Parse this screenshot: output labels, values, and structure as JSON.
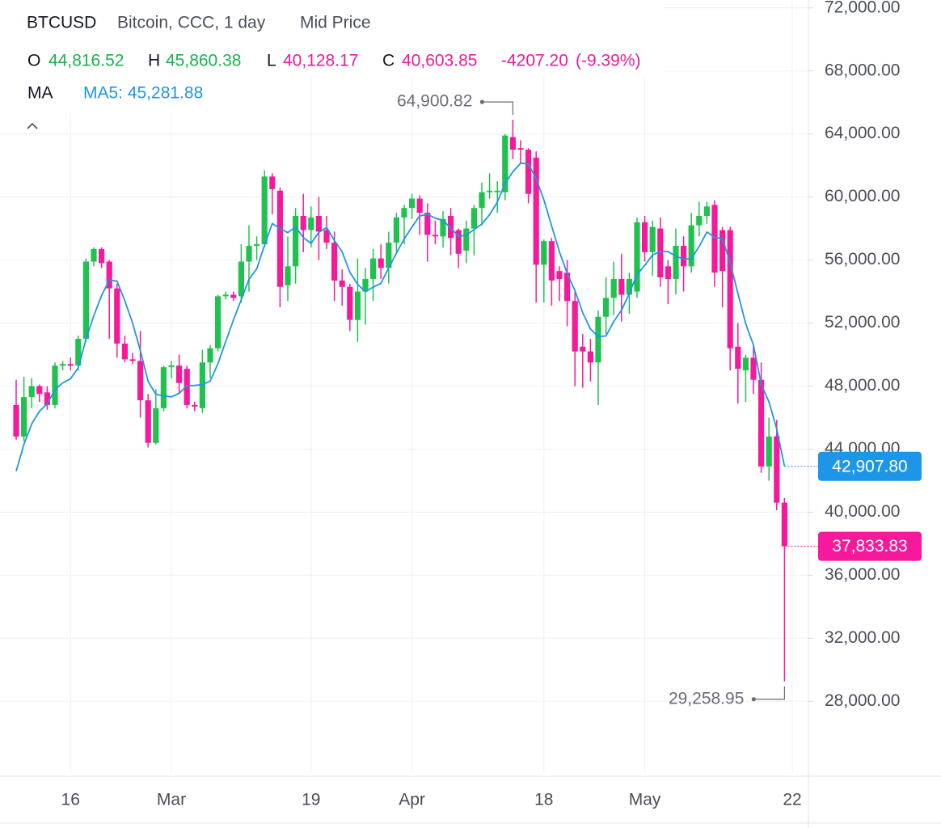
{
  "chart_data": {
    "type": "candlestick",
    "symbol": "BTCUSD",
    "description": "Bitcoin, CCC, 1 day",
    "price_source": "Mid Price",
    "header": {
      "open_label": "O",
      "open": {
        "value": 44816.52,
        "label": "44,816.52"
      },
      "high_label": "H",
      "high": {
        "value": 45860.38,
        "label": "45,860.38"
      },
      "low_label": "L",
      "low": {
        "value": 40128.17,
        "label": "40,128.17"
      },
      "close_label": "C",
      "close": {
        "value": 40603.85,
        "label": "40,603.85"
      },
      "change": {
        "value": -4207.2,
        "label": "-4207.20"
      },
      "change_pct": {
        "value": -9.39,
        "label": "(-9.39%)"
      }
    },
    "categories": [
      null,
      null,
      null,
      null,
      null,
      null,
      null,
      "16",
      null,
      null,
      null,
      null,
      null,
      null,
      null,
      null,
      null,
      null,
      null,
      null,
      "Mar",
      null,
      null,
      null,
      null,
      null,
      null,
      null,
      null,
      null,
      null,
      null,
      null,
      null,
      null,
      null,
      null,
      null,
      "19",
      null,
      null,
      null,
      null,
      null,
      null,
      null,
      null,
      null,
      null,
      null,
      null,
      "Apr",
      null,
      null,
      null,
      null,
      null,
      null,
      null,
      null,
      null,
      null,
      null,
      null,
      null,
      null,
      null,
      null,
      "18",
      null,
      null,
      null,
      null,
      null,
      null,
      null,
      null,
      null,
      null,
      null,
      null,
      "May",
      null,
      null,
      null,
      null,
      null,
      null,
      null,
      null,
      null,
      null,
      null,
      null,
      null,
      null,
      null,
      null,
      null,
      null,
      "22"
    ],
    "open": [
      46800,
      44800,
      47300,
      48000,
      47600,
      46800,
      49300,
      49400,
      49300,
      51000,
      55900,
      56700,
      55900,
      54200,
      50700,
      49700,
      49600,
      47100,
      44400,
      46600,
      49200,
      49300,
      49100,
      46800,
      46600,
      49500,
      50400,
      53700,
      53800,
      53700,
      55900,
      56900,
      57000,
      61300,
      60400,
      54400,
      55600,
      58800,
      57900,
      58800,
      57900,
      57100,
      54700,
      54300,
      52200,
      54000,
      54800,
      56100,
      55500,
      57100,
      58700,
      59300,
      59900,
      59000,
      57600,
      57500,
      58800,
      57900,
      56600,
      58000,
      59300,
      60300,
      60300,
      60300,
      63800,
      63100,
      63000,
      62500,
      55700,
      57200,
      55300,
      55200,
      53400,
      50500,
      50200,
      49500,
      52400,
      53600,
      54800,
      53800,
      54000,
      58400,
      56500,
      58000,
      55600,
      54800,
      56900,
      55600,
      58200,
      58800,
      59500,
      57900,
      57900,
      50500,
      49000,
      49800,
      48400,
      42900,
      44816.52,
      40603.85,
      null
    ],
    "high": [
      48400,
      48600,
      48500,
      48100,
      48000,
      49500,
      49600,
      49800,
      51200,
      56100,
      56800,
      56800,
      56000,
      54500,
      51200,
      50100,
      51500,
      47500,
      47800,
      49300,
      49600,
      50000,
      49300,
      47000,
      50300,
      50600,
      53800,
      54000,
      54000,
      57000,
      58200,
      57500,
      61700,
      61500,
      60600,
      57500,
      59300,
      60200,
      59400,
      60000,
      58800,
      57800,
      55400,
      54500,
      56100,
      55500,
      56700,
      57000,
      57800,
      59000,
      59500,
      60200,
      60100,
      59600,
      58500,
      59100,
      59300,
      58000,
      58500,
      59500,
      60900,
      61500,
      61000,
      64000,
      64900.82,
      63600,
      63100,
      62900,
      57300,
      57400,
      55600,
      56000,
      54100,
      51300,
      51000,
      52800,
      54900,
      55900,
      56400,
      55200,
      58700,
      58800,
      58500,
      58700,
      56000,
      58000,
      57500,
      59000,
      59700,
      59700,
      59800,
      58100,
      58100,
      52000,
      50000,
      50500,
      49500,
      46000,
      45860.38,
      40900,
      null
    ],
    "low": [
      44600,
      44500,
      46600,
      47000,
      46500,
      46600,
      49000,
      49000,
      49000,
      50800,
      55600,
      55500,
      51000,
      49800,
      49500,
      49400,
      46000,
      44100,
      44300,
      46400,
      48500,
      47500,
      46600,
      46400,
      46300,
      48500,
      50200,
      53500,
      53400,
      53300,
      54000,
      56000,
      56800,
      58900,
      53000,
      53400,
      54500,
      56500,
      56800,
      56000,
      56700,
      53400,
      53100,
      51500,
      50800,
      51900,
      53400,
      54800,
      54500,
      56500,
      57000,
      58600,
      57600,
      55900,
      57000,
      56800,
      56300,
      55500,
      55800,
      56300,
      58200,
      59900,
      59000,
      59800,
      62400,
      62100,
      59600,
      53300,
      53300,
      53100,
      53400,
      51800,
      48000,
      47900,
      48300,
      46800,
      51300,
      52500,
      52100,
      52600,
      53600,
      55900,
      55000,
      54300,
      53200,
      53800,
      54000,
      55200,
      57500,
      58300,
      54300,
      53000,
      49000,
      46900,
      47000,
      47500,
      42500,
      42000,
      40128.17,
      29258.95,
      null
    ],
    "close": [
      44800,
      47300,
      48000,
      47500,
      46800,
      49300,
      49400,
      49300,
      51000,
      55900,
      56700,
      55800,
      54200,
      50700,
      49700,
      49600,
      47100,
      44400,
      46600,
      49200,
      49300,
      48200,
      46800,
      46700,
      49500,
      50400,
      53700,
      53800,
      53600,
      55900,
      56900,
      57000,
      61300,
      60500,
      54300,
      55600,
      58800,
      57900,
      58700,
      57800,
      57100,
      54700,
      54300,
      52200,
      54000,
      54800,
      56100,
      55500,
      57100,
      58700,
      59300,
      59900,
      59000,
      57600,
      57500,
      58600,
      57400,
      56400,
      58000,
      59300,
      60300,
      60400,
      60400,
      63900,
      63000,
      63000,
      60200,
      55700,
      57200,
      54700,
      54800,
      53400,
      50200,
      50200,
      49500,
      52400,
      53600,
      54800,
      53800,
      54800,
      58400,
      56500,
      58100,
      54900,
      54800,
      56900,
      55600,
      58200,
      58800,
      59400,
      55200,
      55300,
      50400,
      49100,
      49800,
      48400,
      42900,
      44800,
      40603.85,
      37833.83,
      null
    ],
    "up_color": "#1fc24f",
    "down_color": "#f7199b",
    "ma": {
      "title": "MA",
      "legend": {
        "value": 45281.88,
        "label": "MA5: 45,281.88"
      },
      "color": "#1e96e8",
      "values": [
        42600,
        44300,
        45600,
        46400,
        46880,
        47780,
        48200,
        48460,
        49160,
        50980,
        52460,
        53740,
        54720,
        54660,
        53420,
        52000,
        50260,
        48300,
        47480,
        47380,
        47320,
        47540,
        48020,
        48040,
        48100,
        48320,
        49420,
        50820,
        52200,
        53480,
        54780,
        55440,
        56940,
        58320,
        58000,
        57740,
        58100,
        57420,
        57060,
        57760,
        58060,
        57240,
        56520,
        55220,
        54460,
        54000,
        54280,
        54520,
        55500,
        56440,
        57340,
        58100,
        58800,
        58900,
        58660,
        58520,
        58020,
        57500,
        57580,
        57940,
        58280,
        58880,
        59680,
        60860,
        61600,
        62140,
        62100,
        61160,
        59820,
        58160,
        56520,
        55160,
        54060,
        52660,
        51620,
        51140,
        51180,
        52100,
        52820,
        53880,
        55080,
        55660,
        56320,
        56540,
        56540,
        56240,
        56060,
        56080,
        56860,
        57780,
        57440,
        57380,
        55820,
        53880,
        51960,
        50600,
        48120,
        47000,
        45281.88,
        42907.8,
        null
      ],
      "last_label": {
        "value": 42907.8,
        "label": "42,907.80"
      }
    },
    "last_price_label": {
      "value": 37833.83,
      "label": "37,833.83"
    },
    "high_annotation": {
      "value": 64900.82,
      "label": "64,900.82"
    },
    "low_annotation": {
      "value": 29258.95,
      "label": "29,258.95"
    },
    "ylim": [
      23500,
      72500
    ],
    "yticks": [
      {
        "value": 28000,
        "label": "28,000.00"
      },
      {
        "value": 32000,
        "label": "32,000.00"
      },
      {
        "value": 36000,
        "label": "36,000.00"
      },
      {
        "value": 40000,
        "label": "40,000.00"
      },
      {
        "value": 44000,
        "label": "44,000.00"
      },
      {
        "value": 48000,
        "label": "48,000.00"
      },
      {
        "value": 52000,
        "label": "52,000.00"
      },
      {
        "value": 56000,
        "label": "56,000.00"
      },
      {
        "value": 60000,
        "label": "60,000.00"
      },
      {
        "value": 64000,
        "label": "64,000.00"
      },
      {
        "value": 68000,
        "label": "68,000.00"
      },
      {
        "value": 72000,
        "label": "72,000.00"
      }
    ],
    "grid": true
  }
}
